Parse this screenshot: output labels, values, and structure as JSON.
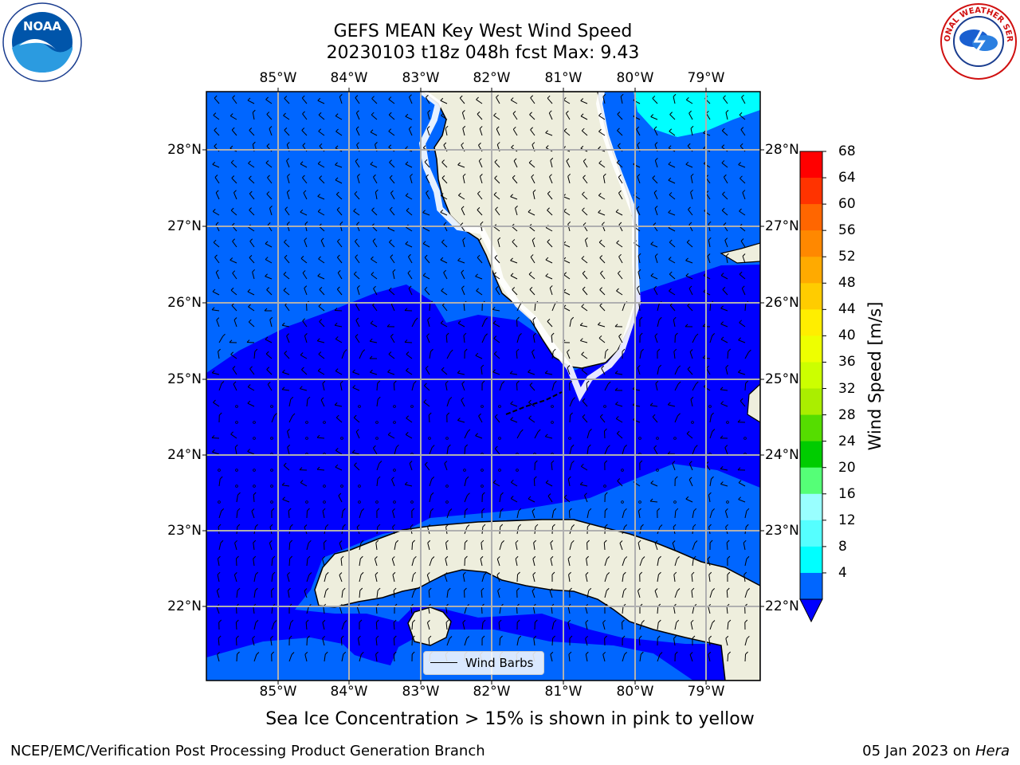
{
  "title": {
    "line1": "GEFS MEAN Key West Wind Speed",
    "line2": "20230103 t18z 048h fcst   Max: 9.43"
  },
  "logos": {
    "left": {
      "icon": "noaa-logo",
      "text": "NOAA"
    },
    "right": {
      "icon": "nws-logo",
      "text": "NATIONAL WEATHER SERVICE"
    }
  },
  "map": {
    "longitude_labels": [
      "85°W",
      "84°W",
      "83°W",
      "82°W",
      "81°W",
      "80°W",
      "79°W"
    ],
    "latitude_labels": [
      "28°N",
      "27°N",
      "26°N",
      "25°N",
      "24°N",
      "23°N",
      "22°N"
    ],
    "colors": {
      "land": "#eeeedd",
      "coast": "#000000",
      "grid": "#b0b0b0",
      "speed_4_8": "#0066ff",
      "speed_below_4": "#0000ff",
      "speed_8_12": "#00ffff"
    }
  },
  "legend": {
    "wind_barbs_label": "Wind Barbs"
  },
  "colorbar": {
    "label": "Wind Speed [m/s]",
    "ticks": [
      "68",
      "64",
      "60",
      "56",
      "52",
      "48",
      "44",
      "40",
      "36",
      "32",
      "28",
      "24",
      "20",
      "16",
      "12",
      "8",
      "4"
    ],
    "colors_top_to_bottom": [
      "#ff0000",
      "#ff3300",
      "#ff6600",
      "#ff8800",
      "#ffaa00",
      "#ffcc00",
      "#ffee00",
      "#eeff00",
      "#ccff00",
      "#aaee00",
      "#55dd00",
      "#00cc00",
      "#55ff77",
      "#99ffff",
      "#55ffff",
      "#00ffff",
      "#0066ff"
    ],
    "under_color": "#0000ff"
  },
  "notes": {
    "sea_ice": "Sea Ice Concentration > 15% is shown in pink to yellow"
  },
  "footer": {
    "left": "NCEP/EMC/Verification Post Processing Product Generation Branch",
    "right_date": "05 Jan 2023 on ",
    "right_host": "Hera"
  }
}
